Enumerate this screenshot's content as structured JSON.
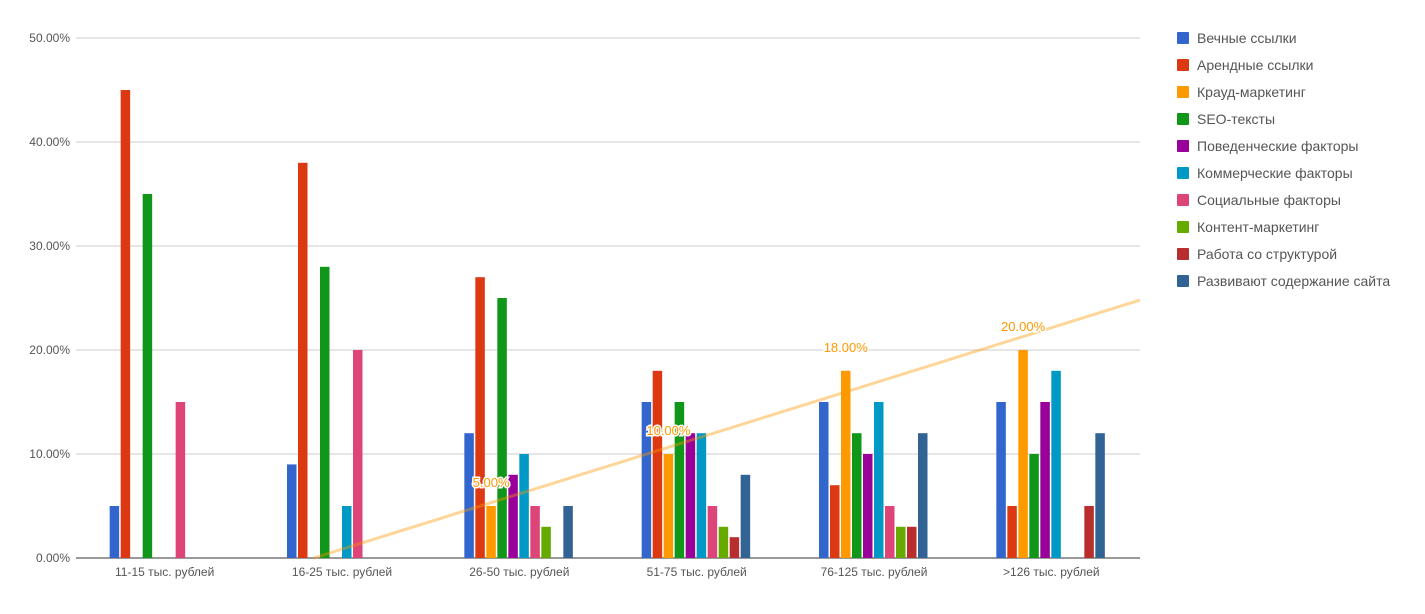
{
  "chart_data": {
    "type": "bar",
    "categories": [
      "11-15 тыс. рублей",
      "16-25 тыс. рублей",
      "26-50 тыс. рублей",
      "51-75 тыс. рублей",
      "76-125 тыс. рублей",
      ">126 тыс. рублей"
    ],
    "ylim": [
      0,
      50
    ],
    "y_ticks": [
      "0.00%",
      "10.00%",
      "20.00%",
      "30.00%",
      "40.00%",
      "50.00%"
    ],
    "y_tick_values": [
      0,
      10,
      20,
      30,
      40,
      50
    ],
    "grid": true,
    "legend_position": "right",
    "series": [
      {
        "name": "Вечные ссылки",
        "color": "#3366cc",
        "values": [
          5,
          9,
          12,
          15,
          15,
          15
        ]
      },
      {
        "name": "Арендные ссылки",
        "color": "#dc3912",
        "values": [
          45,
          38,
          27,
          18,
          7,
          5
        ]
      },
      {
        "name": "Крауд-маркетинг",
        "color": "#ff9900",
        "values": [
          0,
          0,
          5,
          10,
          18,
          20
        ]
      },
      {
        "name": "SEO-тексты",
        "color": "#109618",
        "values": [
          35,
          28,
          25,
          15,
          12,
          10
        ]
      },
      {
        "name": "Поведенческие факторы",
        "color": "#990099",
        "values": [
          0,
          0,
          8,
          12,
          10,
          15
        ]
      },
      {
        "name": "Коммерческие факторы",
        "color": "#0099c6",
        "values": [
          0,
          5,
          10,
          12,
          15,
          18
        ]
      },
      {
        "name": "Социальные факторы",
        "color": "#dd4477",
        "values": [
          15,
          20,
          5,
          5,
          5,
          0
        ]
      },
      {
        "name": "Контент-маркетинг",
        "color": "#66aa00",
        "values": [
          0,
          0,
          3,
          3,
          3,
          0
        ]
      },
      {
        "name": "Работа со структурой",
        "color": "#b82e2e",
        "values": [
          0,
          0,
          0,
          2,
          3,
          5
        ]
      },
      {
        "name": "Развивают содержание сайта",
        "color": "#316395",
        "values": [
          0,
          0,
          5,
          8,
          12,
          12
        ]
      }
    ],
    "trendline": {
      "series": "Крауд-маркетинг",
      "color": "#ff9900",
      "start_value_at_category_index": 1,
      "start_value": 0,
      "end_value": 24.8
    },
    "data_labels": [
      {
        "series": "Крауд-маркетинг",
        "category_index": 2,
        "text": "5.00%"
      },
      {
        "series": "Крауд-маркетинг",
        "category_index": 3,
        "text": "10.00%"
      },
      {
        "series": "Крауд-маркетинг",
        "category_index": 4,
        "text": "18.00%"
      },
      {
        "series": "Крауд-маркетинг",
        "category_index": 5,
        "text": "20.00%"
      }
    ]
  }
}
